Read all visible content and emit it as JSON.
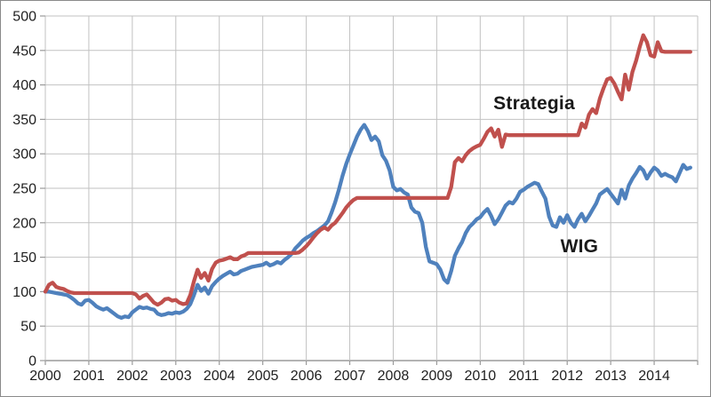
{
  "chart_data": {
    "type": "line",
    "title": "",
    "xlabel": "",
    "ylabel": "",
    "grid": true,
    "legend_position": "none",
    "x_unit": "year",
    "x_range": [
      2000,
      2015
    ],
    "y_range": [
      0,
      500
    ],
    "x_ticks": [
      2000,
      2001,
      2002,
      2003,
      2004,
      2005,
      2006,
      2007,
      2008,
      2009,
      2010,
      2011,
      2012,
      2013,
      2014
    ],
    "y_ticks": [
      0,
      50,
      100,
      150,
      200,
      250,
      300,
      350,
      400,
      450,
      500
    ],
    "start_year": 2000,
    "interval_months": 1,
    "colors": {
      "strategia": "#C0504D",
      "wig": "#4F81BD",
      "gridline": "#c2c2c2",
      "axis": "#9a9a9a",
      "tick_label": "#1f1f1f"
    },
    "series": [
      {
        "name": "WIG",
        "color": "#4F81BD",
        "values": [
          100,
          100,
          99,
          98,
          97,
          96,
          95,
          92,
          88,
          83,
          81,
          87,
          88,
          84,
          79,
          76,
          74,
          76,
          72,
          68,
          64,
          62,
          64,
          63,
          70,
          74,
          78,
          76,
          77,
          75,
          74,
          68,
          66,
          67,
          69,
          68,
          70,
          69,
          71,
          75,
          82,
          95,
          110,
          101,
          106,
          97,
          108,
          114,
          119,
          123,
          126,
          129,
          125,
          126,
          130,
          132,
          134,
          136,
          137,
          138,
          139,
          142,
          138,
          140,
          143,
          141,
          146,
          150,
          155,
          163,
          168,
          174,
          178,
          181,
          185,
          188,
          192,
          196,
          202,
          215,
          230,
          248,
          268,
          285,
          299,
          312,
          325,
          335,
          342,
          333,
          320,
          325,
          318,
          298,
          290,
          276,
          252,
          247,
          249,
          244,
          241,
          222,
          216,
          214,
          200,
          165,
          144,
          142,
          140,
          132,
          118,
          113,
          130,
          152,
          163,
          172,
          185,
          194,
          199,
          205,
          208,
          215,
          220,
          210,
          198,
          205,
          215,
          225,
          230,
          228,
          235,
          245,
          248,
          252,
          255,
          258,
          256,
          245,
          235,
          209,
          196,
          194,
          208,
          200,
          211,
          200,
          194,
          205,
          213,
          202,
          210,
          219,
          228,
          241,
          245,
          249,
          242,
          235,
          228,
          248,
          235,
          254,
          264,
          272,
          281,
          276,
          264,
          273,
          280,
          276,
          268,
          271,
          268,
          266,
          260,
          272,
          284,
          278,
          280
        ]
      },
      {
        "name": "Strategia",
        "color": "#C0504D",
        "values": [
          100,
          110,
          113,
          107,
          105,
          104,
          101,
          99,
          98,
          98,
          98,
          98,
          98,
          98,
          98,
          98,
          98,
          98,
          98,
          98,
          98,
          98,
          98,
          98,
          98,
          96,
          90,
          94,
          96,
          90,
          84,
          81,
          84,
          89,
          90,
          87,
          88,
          84,
          82,
          83,
          95,
          115,
          132,
          120,
          127,
          116,
          133,
          142,
          145,
          146,
          148,
          150,
          147,
          147,
          151,
          153,
          156,
          156,
          156,
          156,
          156,
          156,
          156,
          156,
          156,
          156,
          156,
          156,
          156,
          156,
          157,
          161,
          166,
          172,
          179,
          185,
          190,
          193,
          190,
          196,
          200,
          207,
          214,
          222,
          228,
          233,
          236,
          236,
          236,
          236,
          236,
          236,
          236,
          236,
          236,
          236,
          236,
          236,
          236,
          236,
          236,
          236,
          236,
          236,
          236,
          236,
          236,
          236,
          236,
          236,
          236,
          236,
          252,
          288,
          294,
          289,
          298,
          304,
          308,
          311,
          313,
          322,
          332,
          337,
          325,
          335,
          310,
          328,
          327,
          327,
          327,
          327,
          327,
          327,
          327,
          327,
          327,
          327,
          327,
          327,
          327,
          327,
          327,
          327,
          327,
          327,
          327,
          327,
          344,
          338,
          357,
          365,
          359,
          380,
          395,
          408,
          410,
          402,
          390,
          379,
          415,
          393,
          419,
          435,
          455,
          472,
          462,
          443,
          441,
          462,
          449,
          448,
          448,
          448,
          448,
          448,
          448,
          448,
          448
        ]
      }
    ],
    "annotations": [
      {
        "text": "Strategia",
        "year": 2011.24,
        "value": 372
      },
      {
        "text": "WIG",
        "year": 2012.28,
        "value": 165
      }
    ]
  }
}
